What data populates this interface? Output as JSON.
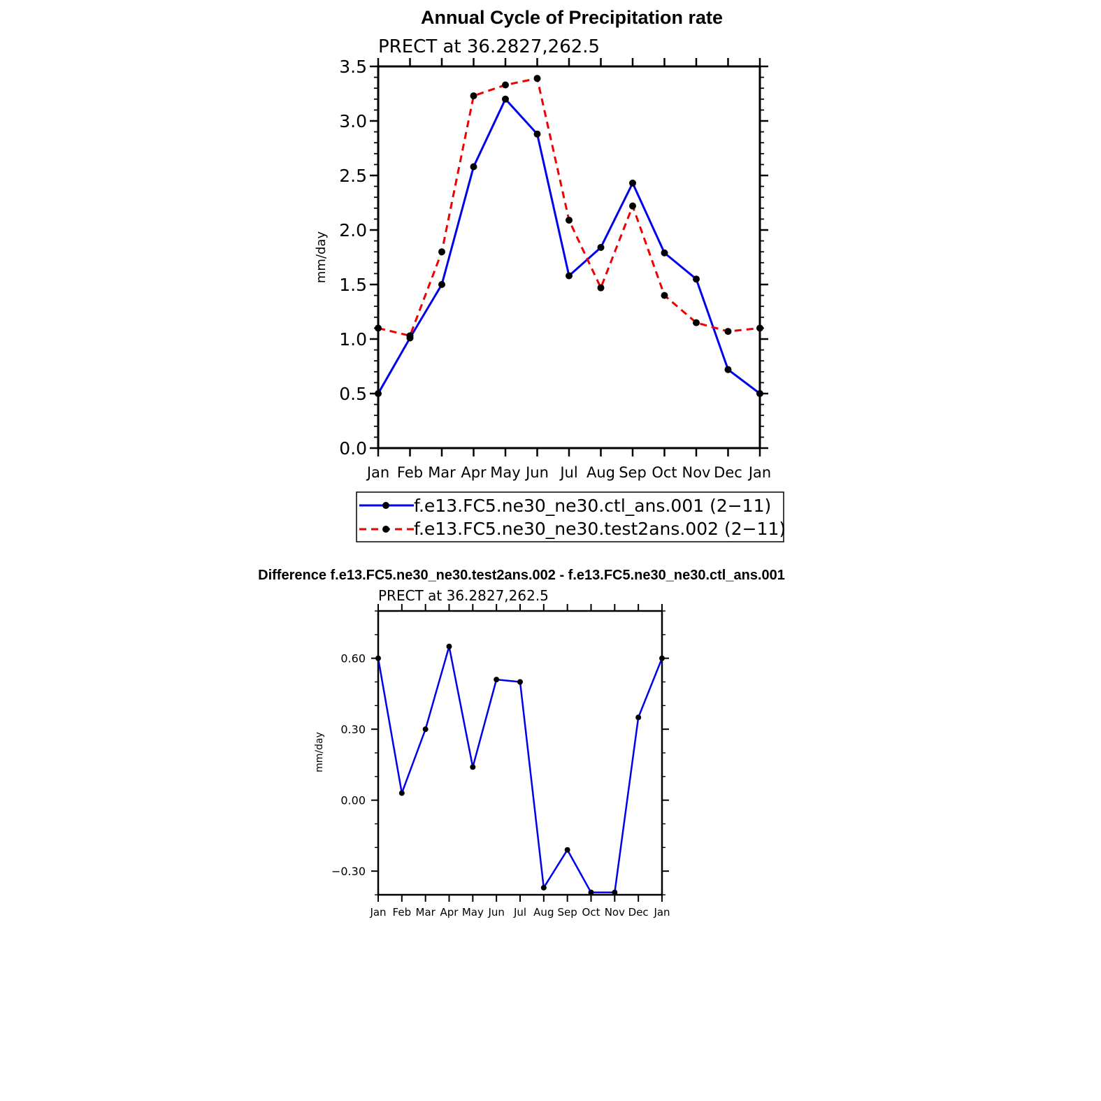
{
  "chart_data": [
    {
      "type": "line",
      "title": "Annual Cycle of Precipitation rate",
      "subtitle": "PRECT at 36.2827,262.5",
      "xlabel": "",
      "ylabel": "mm/day",
      "categories": [
        "Jan",
        "Feb",
        "Mar",
        "Apr",
        "May",
        "Jun",
        "Jul",
        "Aug",
        "Sep",
        "Oct",
        "Nov",
        "Dec",
        "Jan"
      ],
      "ylim": [
        0,
        3.5
      ],
      "yticks": [
        "0.0",
        "0.5",
        "1.0",
        "1.5",
        "2.0",
        "2.5",
        "3.0",
        "3.5"
      ],
      "legend_position": "bottom",
      "series": [
        {
          "name": "f.e13.FC5.ne30_ne30.ctl_ans.001 (2−11)",
          "color": "#0000ee",
          "style": "solid",
          "values": [
            0.5,
            1.01,
            1.5,
            2.58,
            3.2,
            2.88,
            1.58,
            1.84,
            2.43,
            1.79,
            1.55,
            0.72,
            0.5
          ]
        },
        {
          "name": "f.e13.FC5.ne30_ne30.test2ans.002 (2−11)",
          "color": "#ee0000",
          "style": "dashed",
          "values": [
            1.1,
            1.03,
            1.8,
            3.23,
            3.33,
            3.39,
            2.09,
            1.47,
            2.22,
            1.4,
            1.15,
            1.07,
            1.1
          ]
        }
      ]
    },
    {
      "type": "line",
      "title": "Difference f.e13.FC5.ne30_ne30.test2ans.002 - f.e13.FC5.ne30_ne30.ctl_ans.001",
      "subtitle": "PRECT at 36.2827,262.5",
      "xlabel": "",
      "ylabel": "mm/day",
      "categories": [
        "Jan",
        "Feb",
        "Mar",
        "Apr",
        "May",
        "Jun",
        "Jul",
        "Aug",
        "Sep",
        "Oct",
        "Nov",
        "Dec",
        "Jan"
      ],
      "ylim": [
        -0.4,
        0.8
      ],
      "yticks": [
        "−0.30",
        "0.00",
        "0.30",
        "0.60"
      ],
      "series": [
        {
          "color": "#0000ee",
          "style": "solid",
          "values": [
            0.6,
            0.03,
            0.3,
            0.65,
            0.14,
            0.51,
            0.5,
            -0.37,
            -0.21,
            -0.39,
            -0.39,
            0.35,
            0.6
          ]
        }
      ]
    }
  ]
}
